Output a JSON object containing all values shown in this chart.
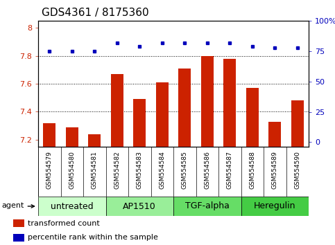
{
  "title": "GDS4361 / 8175360",
  "samples": [
    "GSM554579",
    "GSM554580",
    "GSM554581",
    "GSM554582",
    "GSM554583",
    "GSM554584",
    "GSM554585",
    "GSM554586",
    "GSM554587",
    "GSM554588",
    "GSM554589",
    "GSM554590"
  ],
  "red_values": [
    7.32,
    7.29,
    7.24,
    7.67,
    7.49,
    7.61,
    7.71,
    7.8,
    7.78,
    7.57,
    7.33,
    7.48
  ],
  "blue_values": [
    75,
    75,
    75,
    82,
    79,
    82,
    82,
    82,
    82,
    79,
    78,
    78
  ],
  "ylim_left": [
    7.15,
    8.05
  ],
  "ylim_right": [
    -3.75,
    100
  ],
  "yticks_left": [
    7.2,
    7.4,
    7.6,
    7.8,
    8.0
  ],
  "yticks_right": [
    0,
    25,
    50,
    75,
    100
  ],
  "ytick_left_labels": [
    "7.2",
    "7.4",
    "7.6",
    "7.8",
    "8"
  ],
  "ytick_right_labels": [
    "0",
    "25",
    "50",
    "75",
    "100%"
  ],
  "groups": [
    {
      "label": "untreated",
      "start": 0,
      "end": 3,
      "color": "#ccffcc"
    },
    {
      "label": "AP1510",
      "start": 3,
      "end": 6,
      "color": "#99ee99"
    },
    {
      "label": "TGF-alpha",
      "start": 6,
      "end": 9,
      "color": "#66dd66"
    },
    {
      "label": "Heregulin",
      "start": 9,
      "end": 12,
      "color": "#44cc44"
    }
  ],
  "agent_label": "agent",
  "bar_color": "#cc2200",
  "dot_color": "#0000bb",
  "bar_bottom": 7.15,
  "dotted_line_y": [
    7.8,
    7.6,
    7.4
  ],
  "legend_items": [
    {
      "color": "#cc2200",
      "label": "transformed count"
    },
    {
      "color": "#0000bb",
      "label": "percentile rank within the sample"
    }
  ],
  "title_fontsize": 11,
  "tick_fontsize": 8,
  "sample_fontsize": 6.5,
  "group_label_fontsize": 9,
  "agent_fontsize": 8,
  "legend_fontsize": 8,
  "background_color": "#ffffff",
  "tick_area_color": "#d0d0d0"
}
